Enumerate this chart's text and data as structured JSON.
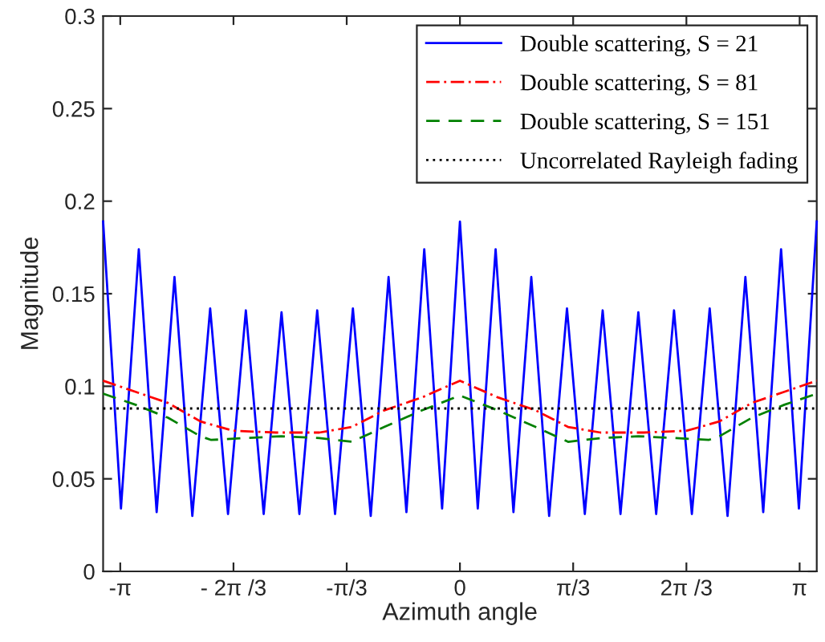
{
  "chart_data": {
    "type": "line",
    "xlabel": "Azimuth angle",
    "ylabel": "Magnitude",
    "xlim": [
      -3.3,
      3.3
    ],
    "ylim": [
      0,
      0.3
    ],
    "xticks": [
      {
        "value": -3.1416,
        "label": "-π"
      },
      {
        "value": -2.0944,
        "label": "- 2π /3"
      },
      {
        "value": -1.0472,
        "label": "-π/3"
      },
      0,
      {
        "value": 1.0472,
        "label": "π/3"
      },
      {
        "value": 2.0944,
        "label": "2π /3"
      },
      {
        "value": 3.1416,
        "label": "π"
      }
    ],
    "yticks": [
      0,
      0.05,
      0.1,
      0.15,
      0.2,
      0.25,
      0.3
    ],
    "grid": false,
    "legend": "top right",
    "marker": "none",
    "series": [
      {
        "name": "Double scattering, S = 21",
        "color": "#0000ff",
        "line_style": "solid",
        "x": [
          -3.3,
          -3.135,
          -2.97,
          -2.805,
          -2.64,
          -2.475,
          -2.31,
          -2.145,
          -1.98,
          -1.815,
          -1.65,
          -1.485,
          -1.32,
          -1.155,
          -0.99,
          -0.825,
          -0.66,
          -0.495,
          -0.33,
          -0.165,
          0,
          0.165,
          0.33,
          0.495,
          0.66,
          0.825,
          0.99,
          1.155,
          1.32,
          1.485,
          1.65,
          1.815,
          1.98,
          2.145,
          2.31,
          2.475,
          2.64,
          2.805,
          2.97,
          3.135,
          3.3
        ],
        "values": [
          0.189,
          0.034,
          0.174,
          0.032,
          0.159,
          0.03,
          0.142,
          0.031,
          0.141,
          0.031,
          0.14,
          0.031,
          0.141,
          0.031,
          0.142,
          0.03,
          0.159,
          0.032,
          0.174,
          0.034,
          0.189,
          0.034,
          0.174,
          0.032,
          0.159,
          0.03,
          0.142,
          0.031,
          0.141,
          0.031,
          0.14,
          0.031,
          0.141,
          0.031,
          0.142,
          0.03,
          0.159,
          0.032,
          0.174,
          0.034,
          0.189
        ]
      },
      {
        "name": "Double scattering, S = 81",
        "color": "#ff0000",
        "line_style": "dashdot",
        "x": [
          -3.3,
          -3.0,
          -2.7,
          -2.4,
          -2.1,
          -1.7,
          -1.3,
          -1.0,
          -0.7,
          -0.35,
          0,
          0.35,
          0.7,
          1.0,
          1.3,
          1.7,
          2.1,
          2.4,
          2.7,
          3.0,
          3.3
        ],
        "values": [
          0.103,
          0.097,
          0.091,
          0.081,
          0.076,
          0.075,
          0.075,
          0.078,
          0.087,
          0.094,
          0.103,
          0.094,
          0.087,
          0.078,
          0.075,
          0.075,
          0.076,
          0.081,
          0.091,
          0.097,
          0.103
        ]
      },
      {
        "name": "Double scattering, S = 151",
        "color": "#008000",
        "line_style": "dashed",
        "x": [
          -3.3,
          -3.0,
          -2.7,
          -2.4,
          -2.3,
          -2.0,
          -1.65,
          -1.3,
          -1.0,
          -0.7,
          -0.35,
          0,
          0.35,
          0.7,
          1.0,
          1.3,
          1.65,
          2.0,
          2.3,
          2.4,
          2.7,
          3.0,
          3.3
        ],
        "values": [
          0.096,
          0.09,
          0.083,
          0.073,
          0.071,
          0.072,
          0.073,
          0.072,
          0.07,
          0.078,
          0.087,
          0.095,
          0.087,
          0.078,
          0.07,
          0.072,
          0.073,
          0.072,
          0.071,
          0.073,
          0.083,
          0.09,
          0.096
        ]
      },
      {
        "name": "Uncorrelated Rayleigh fading",
        "color": "#000000",
        "line_style": "dotted",
        "x": [
          -3.3,
          3.3
        ],
        "values": [
          0.088,
          0.088
        ]
      }
    ]
  }
}
